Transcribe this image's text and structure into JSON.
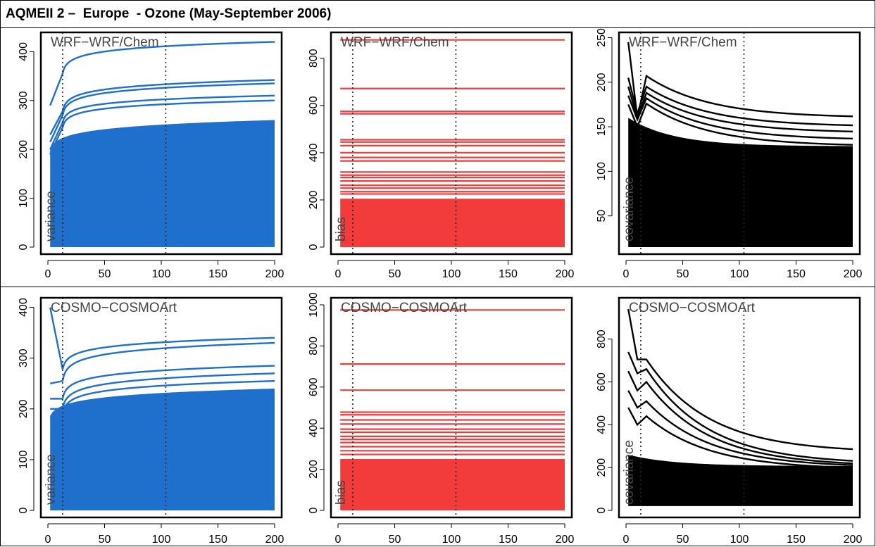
{
  "title": "AQMEII 2 –  Europe  - Ozone (May-September 2006)",
  "chart_data": [
    {
      "type": "line",
      "model": "WRF−WRF/Chem",
      "metric": "variance",
      "color": "#1f6fcd",
      "xlim": [
        0,
        200
      ],
      "ylim": [
        0,
        425
      ],
      "x_ticks": [
        "0",
        "50",
        "100",
        "150",
        "200"
      ],
      "y_ticks": [
        "0",
        "100",
        "200",
        "300",
        "400"
      ],
      "y_tick_values": [
        0,
        100,
        200,
        300,
        400
      ],
      "vlines": [
        13,
        104
      ],
      "highlight_curves": [
        {
          "start": 290,
          "early": 355,
          "end": 420
        },
        {
          "start": 230,
          "early": 278,
          "end": 342
        },
        {
          "start": 215,
          "early": 270,
          "end": 335
        },
        {
          "start": 200,
          "early": 255,
          "end": 310
        },
        {
          "start": 190,
          "early": 245,
          "end": 300
        }
      ],
      "fill_level": 260
    },
    {
      "type": "line",
      "model": "WRF−WRF/Chem",
      "metric": "bias",
      "color": "#f23b3b",
      "xlim": [
        0,
        200
      ],
      "ylim": [
        0,
        880
      ],
      "x_ticks": [
        "0",
        "50",
        "100",
        "150",
        "200"
      ],
      "y_ticks": [
        "0",
        "200",
        "400",
        "600",
        "800"
      ],
      "y_tick_values": [
        0,
        200,
        400,
        600,
        800
      ],
      "vlines": [
        13,
        104
      ],
      "flat_levels": [
        878,
        672,
        575,
        565,
        455,
        445,
        430,
        400,
        380,
        365,
        318,
        305,
        295,
        280,
        262,
        250,
        235,
        225
      ],
      "fill_level": 205
    },
    {
      "type": "line",
      "model": "WRF−WRF/Chem",
      "metric": "covariance",
      "color": "#000000",
      "xlim": [
        0,
        200
      ],
      "ylim": [
        15,
        248
      ],
      "x_ticks": [
        "0",
        "50",
        "100",
        "150",
        "200"
      ],
      "y_ticks": [
        "50",
        "100",
        "150",
        "200",
        "250"
      ],
      "y_tick_values": [
        50,
        100,
        150,
        200,
        250
      ],
      "vlines": [
        13,
        104
      ],
      "highlight_curves": [
        {
          "start": 245,
          "dip": 160,
          "peak": 207,
          "end": 160
        },
        {
          "start": 205,
          "dip": 165,
          "peak": 195,
          "end": 150
        },
        {
          "start": 195,
          "dip": 160,
          "peak": 188,
          "end": 143
        },
        {
          "start": 185,
          "dip": 158,
          "peak": 182,
          "end": 135
        },
        {
          "start": 175,
          "dip": 150,
          "peak": 176,
          "end": 128
        }
      ],
      "fill_level": 160,
      "floor": 15
    },
    {
      "type": "line",
      "model": "COSMO−COSMOArt",
      "metric": "variance",
      "color": "#1f6fcd",
      "xlim": [
        0,
        200
      ],
      "ylim": [
        0,
        405
      ],
      "x_ticks": [
        "0",
        "50",
        "100",
        "150",
        "200"
      ],
      "y_ticks": [
        "0",
        "100",
        "200",
        "300",
        "400"
      ],
      "y_tick_values": [
        0,
        100,
        200,
        300,
        400
      ],
      "vlines": [
        13,
        104
      ],
      "highlight_curves": [
        {
          "start": 400,
          "early": 278,
          "end": 340
        },
        {
          "start": 250,
          "early": 255,
          "end": 330
        },
        {
          "start": 220,
          "early": 220,
          "end": 285
        },
        {
          "start": 200,
          "early": 200,
          "end": 270
        },
        {
          "start": 180,
          "early": 190,
          "end": 255
        }
      ],
      "fill_level": 240
    },
    {
      "type": "line",
      "model": "COSMO−COSMOArt",
      "metric": "bias",
      "color": "#f23b3b",
      "xlim": [
        0,
        200
      ],
      "ylim": [
        0,
        1000
      ],
      "x_ticks": [
        "0",
        "50",
        "100",
        "150",
        "200"
      ],
      "y_ticks": [
        "0",
        "200",
        "400",
        "600",
        "800",
        "1000"
      ],
      "y_tick_values": [
        0,
        200,
        400,
        600,
        800,
        1000
      ],
      "vlines": [
        13,
        104
      ],
      "flat_levels": [
        975,
        712,
        585,
        478,
        465,
        440,
        420,
        395,
        380,
        360,
        345,
        330,
        310,
        290,
        272
      ],
      "fill_level": 250
    },
    {
      "type": "line",
      "model": "COSMO−COSMOArt",
      "metric": "covariance",
      "color": "#000000",
      "xlim": [
        0,
        200
      ],
      "ylim": [
        0,
        960
      ],
      "x_ticks": [
        "0",
        "50",
        "100",
        "150",
        "200"
      ],
      "y_ticks": [
        "0",
        "200",
        "400",
        "600",
        "800"
      ],
      "y_tick_values": [
        0,
        200,
        400,
        600,
        800
      ],
      "vlines": [
        13,
        104
      ],
      "highlight_curves": [
        {
          "start": 940,
          "dip": 705,
          "peak": 705,
          "end": 270
        },
        {
          "start": 740,
          "dip": 640,
          "peak": 660,
          "end": 215
        },
        {
          "start": 650,
          "dip": 560,
          "peak": 600,
          "end": 205
        },
        {
          "start": 560,
          "dip": 480,
          "peak": 510,
          "end": 200
        },
        {
          "start": 480,
          "dip": 400,
          "peak": 440,
          "end": 190
        }
      ],
      "fill_level": 260,
      "floor": 20
    }
  ]
}
